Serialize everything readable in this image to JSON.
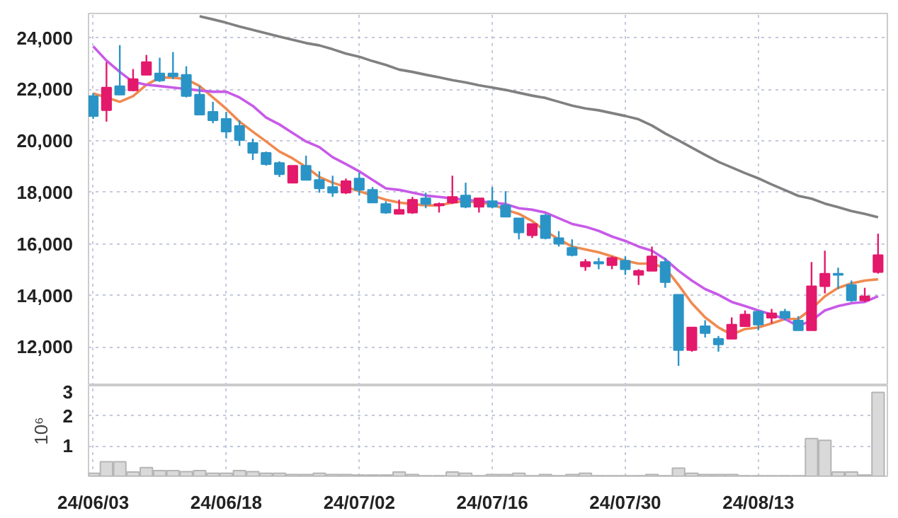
{
  "chart_data": [
    {
      "type": "candlestick",
      "categories": [
        "24/06/03",
        null,
        null,
        null,
        null,
        null,
        null,
        null,
        null,
        null,
        "24/06/18",
        null,
        null,
        null,
        null,
        null,
        null,
        null,
        null,
        null,
        "24/07/02",
        null,
        null,
        null,
        null,
        null,
        null,
        null,
        null,
        null,
        "24/07/16",
        null,
        null,
        null,
        null,
        null,
        null,
        null,
        null,
        null,
        "24/07/30",
        null,
        null,
        null,
        null,
        null,
        null,
        null,
        null,
        null,
        "24/08/13",
        null,
        null,
        null,
        null,
        null,
        null,
        null,
        null,
        null
      ],
      "ohlc": [
        [
          21740,
          21850,
          20860,
          20970
        ],
        [
          21190,
          23060,
          20750,
          22070
        ],
        [
          22130,
          23720,
          21780,
          21800
        ],
        [
          21960,
          22790,
          21930,
          22400
        ],
        [
          22570,
          23340,
          22570,
          23060
        ],
        [
          22620,
          23230,
          22290,
          22350
        ],
        [
          22620,
          23450,
          22400,
          22510
        ],
        [
          22570,
          22900,
          21690,
          21740
        ],
        [
          21800,
          22130,
          21020,
          21020
        ],
        [
          21130,
          21520,
          20690,
          20800
        ],
        [
          20860,
          21130,
          20100,
          20360
        ],
        [
          20580,
          20800,
          19810,
          20030
        ],
        [
          19920,
          20090,
          19260,
          19540
        ],
        [
          19540,
          19590,
          19040,
          19100
        ],
        [
          19150,
          19210,
          18600,
          18710
        ],
        [
          18380,
          19040,
          18380,
          19040
        ],
        [
          19040,
          19430,
          18490,
          18490
        ],
        [
          18490,
          18820,
          17990,
          18160
        ],
        [
          18210,
          18650,
          17830,
          17990
        ],
        [
          17990,
          18540,
          17940,
          18440
        ],
        [
          18540,
          18770,
          17880,
          18100
        ],
        [
          18100,
          18210,
          17610,
          17610
        ],
        [
          17550,
          17660,
          17170,
          17220
        ],
        [
          17170,
          17720,
          17170,
          17330
        ],
        [
          17220,
          17830,
          17170,
          17720
        ],
        [
          17770,
          17990,
          17390,
          17550
        ],
        [
          17500,
          17610,
          17220,
          17550
        ],
        [
          17610,
          18650,
          17550,
          17830
        ],
        [
          17880,
          18380,
          17390,
          17440
        ],
        [
          17440,
          17770,
          17220,
          17770
        ],
        [
          17660,
          18210,
          17390,
          17440
        ],
        [
          17500,
          18050,
          17060,
          17060
        ],
        [
          17000,
          17000,
          16180,
          16450
        ],
        [
          16340,
          16780,
          16230,
          16780
        ],
        [
          17110,
          17170,
          16180,
          16230
        ],
        [
          16230,
          16500,
          15900,
          16010
        ],
        [
          15850,
          16180,
          15520,
          15570
        ],
        [
          15130,
          15410,
          14960,
          15300
        ],
        [
          15300,
          15460,
          15020,
          15240
        ],
        [
          15180,
          15520,
          15020,
          15460
        ],
        [
          15350,
          15520,
          14800,
          15020
        ],
        [
          14800,
          15020,
          14410,
          14960
        ],
        [
          14960,
          15900,
          14960,
          15520
        ],
        [
          15300,
          15460,
          14300,
          14520
        ],
        [
          14030,
          14030,
          11270,
          11880
        ],
        [
          11880,
          12760,
          11820,
          12760
        ],
        [
          12810,
          13040,
          12370,
          12540
        ],
        [
          12320,
          12430,
          11820,
          12100
        ],
        [
          12320,
          13150,
          12320,
          12870
        ],
        [
          12810,
          13420,
          12810,
          13260
        ],
        [
          13370,
          13420,
          12650,
          12870
        ],
        [
          13140,
          13480,
          12920,
          13310
        ],
        [
          13370,
          13480,
          13030,
          13140
        ],
        [
          13030,
          13200,
          12650,
          12650
        ],
        [
          12650,
          15300,
          12650,
          14360
        ],
        [
          14360,
          15740,
          14080,
          14850
        ],
        [
          14850,
          15080,
          14250,
          14800
        ],
        [
          14410,
          14580,
          13750,
          13810
        ],
        [
          13810,
          14300,
          13750,
          13970
        ],
        [
          14910,
          16400,
          14850,
          15570
        ]
      ],
      "colors": [
        "#2b94c6",
        "#e3196b",
        "#2b94c6",
        "#e3196b",
        "#e3196b",
        "#2b94c6",
        "#2b94c6",
        "#2b94c6",
        "#2b94c6",
        "#2b94c6",
        "#2b94c6",
        "#2b94c6",
        "#2b94c6",
        "#2b94c6",
        "#2b94c6",
        "#e3196b",
        "#2b94c6",
        "#2b94c6",
        "#2b94c6",
        "#e3196b",
        "#2b94c6",
        "#2b94c6",
        "#2b94c6",
        "#e3196b",
        "#e3196b",
        "#2b94c6",
        "#e3196b",
        "#e3196b",
        "#2b94c6",
        "#e3196b",
        "#2b94c6",
        "#2b94c6",
        "#2b94c6",
        "#e3196b",
        "#2b94c6",
        "#2b94c6",
        "#2b94c6",
        "#e3196b",
        "#2b94c6",
        "#e3196b",
        "#2b94c6",
        "#e3196b",
        "#e3196b",
        "#2b94c6",
        "#2b94c6",
        "#e3196b",
        "#2b94c6",
        "#2b94c6",
        "#e3196b",
        "#e3196b",
        "#2b94c6",
        "#e3196b",
        "#2b94c6",
        "#2b94c6",
        "#e3196b",
        "#e3196b",
        "#2b94c6",
        "#2b94c6",
        "#e3196b",
        "#e3196b"
      ],
      "series": [
        {
          "type": "line",
          "color": "#f08a50",
          "values": [
            21850,
            21690,
            21520,
            21740,
            22180,
            22460,
            22460,
            22400,
            22130,
            21690,
            21250,
            20750,
            20360,
            19980,
            19590,
            19320,
            18990,
            18600,
            18380,
            18210,
            18050,
            17880,
            17720,
            17610,
            17550,
            17500,
            17500,
            17610,
            17660,
            17610,
            17550,
            17330,
            17170,
            16890,
            16500,
            16180,
            15900,
            15790,
            15680,
            15520,
            15350,
            15240,
            15240,
            15070,
            14410,
            13700,
            13150,
            12760,
            12480,
            12700,
            12760,
            12920,
            13090,
            13090,
            13480,
            13970,
            14300,
            14470,
            14580,
            14630
          ]
        },
        {
          "type": "line",
          "color": "#c85ae8",
          "values": [
            23670,
            23120,
            22680,
            22290,
            22180,
            22130,
            22070,
            22020,
            21960,
            21910,
            21910,
            21690,
            21360,
            20910,
            20640,
            20310,
            19980,
            19760,
            19370,
            19100,
            18820,
            18490,
            18160,
            18100,
            17990,
            17880,
            17830,
            17770,
            17720,
            17660,
            17610,
            17550,
            17390,
            17330,
            17220,
            17000,
            16780,
            16670,
            16510,
            16290,
            16120,
            15900,
            15740,
            15410,
            14960,
            14580,
            14250,
            14030,
            13750,
            13590,
            13420,
            13260,
            13090,
            12810,
            13030,
            13420,
            13590,
            13700,
            13750,
            13970
          ]
        },
        {
          "type": "line",
          "color": "#808080",
          "values": [
            null,
            null,
            null,
            null,
            null,
            null,
            null,
            null,
            24840,
            24720,
            24590,
            24440,
            24310,
            24180,
            24050,
            23930,
            23800,
            23710,
            23560,
            23390,
            23270,
            23100,
            22950,
            22770,
            22680,
            22570,
            22470,
            22360,
            22270,
            22160,
            22070,
            21980,
            21870,
            21760,
            21670,
            21520,
            21370,
            21260,
            21190,
            21080,
            20970,
            20840,
            20600,
            20290,
            20020,
            19740,
            19460,
            19190,
            18970,
            18750,
            18550,
            18310,
            18090,
            17870,
            17760,
            17570,
            17430,
            17280,
            17170,
            17040
          ]
        }
      ],
      "ylim": [
        10500,
        24950
      ],
      "yticks": [
        {
          "value": 12000,
          "label": "12,000"
        },
        {
          "value": 14000,
          "label": "14,000"
        },
        {
          "value": 16000,
          "label": "16,000"
        },
        {
          "value": 18000,
          "label": "18,000"
        },
        {
          "value": 20000,
          "label": "20,000"
        },
        {
          "value": 22000,
          "label": "22,000"
        },
        {
          "value": 24000,
          "label": "24,000"
        }
      ],
      "grid": true,
      "tick_labels": "y"
    },
    {
      "type": "bar",
      "categories": [
        "24/06/03",
        null,
        null,
        null,
        null,
        null,
        null,
        null,
        null,
        null,
        "24/06/18",
        null,
        null,
        null,
        null,
        null,
        null,
        null,
        null,
        null,
        "24/07/02",
        null,
        null,
        null,
        null,
        null,
        null,
        null,
        null,
        null,
        "24/07/16",
        null,
        null,
        null,
        null,
        null,
        null,
        null,
        null,
        null,
        "24/07/30",
        null,
        null,
        null,
        null,
        null,
        null,
        null,
        null,
        null,
        "24/08/13",
        null,
        null,
        null,
        null,
        null,
        null,
        null,
        null,
        null
      ],
      "series": [
        {
          "color": "#d9d9d9",
          "values": [
            0.1,
            0.48,
            0.48,
            0.14,
            0.29,
            0.19,
            0.19,
            0.15,
            0.19,
            0.1,
            0.1,
            0.19,
            0.15,
            0.1,
            0.1,
            0.06,
            0.06,
            0.1,
            0.06,
            0.06,
            0.04,
            0.04,
            0.04,
            0.14,
            0.06,
            0.02,
            0.02,
            0.14,
            0.1,
            0.02,
            0.06,
            0.06,
            0.1,
            0.02,
            0.06,
            0.02,
            0.06,
            0.1,
            0.02,
            0.02,
            0.02,
            0.02,
            0.06,
            0.02,
            0.27,
            0.1,
            0.06,
            0.06,
            0.06,
            0.02,
            0.02,
            0.02,
            0.02,
            0.02,
            1.25,
            1.19,
            0.14,
            0.14,
            0.04,
            2.78
          ]
        }
      ],
      "ylabel": "10⁶",
      "ylim": [
        0,
        3
      ],
      "yticks": [
        1,
        2,
        3
      ],
      "grid": true
    }
  ]
}
